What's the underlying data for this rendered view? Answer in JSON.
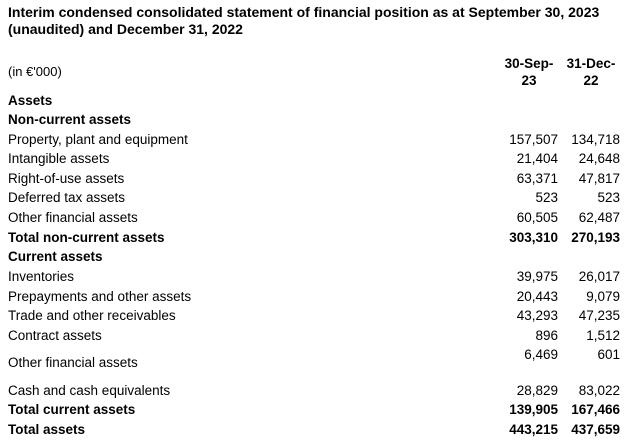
{
  "title": "Interim condensed consolidated statement of financial position as at September 30, 2023 (unaudited) and December 31, 2022",
  "unit": "(in €'000)",
  "columns": [
    "30-Sep-23",
    "31-Dec-22"
  ],
  "rows": [
    {
      "label": "Assets",
      "bold": true
    },
    {
      "label": "Non-current assets",
      "bold": true
    },
    {
      "label": "Property, plant and equipment",
      "values": [
        "157,507",
        "134,718"
      ]
    },
    {
      "label": "Intangible assets",
      "values": [
        "21,404",
        "24,648"
      ]
    },
    {
      "label": "Right-of-use assets",
      "values": [
        "63,371",
        "47,817"
      ]
    },
    {
      "label": "Deferred tax assets",
      "values": [
        "523",
        "523"
      ]
    },
    {
      "label": "Other financial assets",
      "values": [
        "60,505",
        "62,487"
      ]
    },
    {
      "label": "Total non-current assets",
      "bold": true,
      "values": [
        "303,310",
        "270,193"
      ]
    },
    {
      "label": "Current assets",
      "bold": true
    },
    {
      "label": "Inventories",
      "values": [
        "39,975",
        "26,017"
      ]
    },
    {
      "label": "Prepayments and other assets",
      "values": [
        "20,443",
        "9,079"
      ]
    },
    {
      "label": "Trade and other receivables",
      "values": [
        "43,293",
        "47,235"
      ]
    },
    {
      "label": "Contract assets",
      "values": [
        "896",
        "1,512"
      ]
    },
    {
      "label": "Other financial assets",
      "values": [
        "6,469",
        "601"
      ]
    },
    {
      "label": "Cash and cash equivalents",
      "values": [
        "28,829",
        "83,022"
      ]
    },
    {
      "label": "Total current assets",
      "bold": true,
      "values": [
        "139,905",
        "167,466"
      ]
    },
    {
      "label": "Total assets",
      "bold": true,
      "values": [
        "443,215",
        "437,659"
      ]
    }
  ]
}
